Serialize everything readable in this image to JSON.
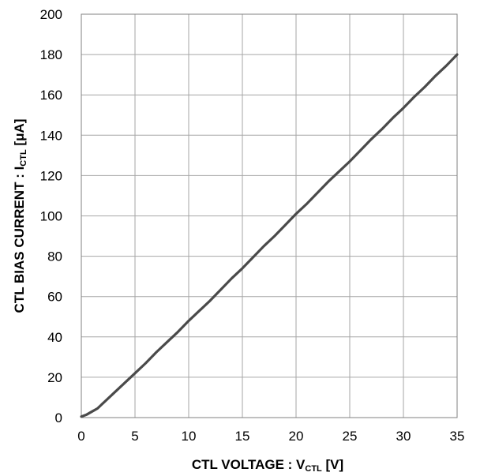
{
  "chart_data": {
    "type": "line",
    "title": "",
    "xlabel": {
      "prefix": "CTL VOLTAGE : V",
      "subscript": "CTL",
      "suffix": " [V]"
    },
    "ylabel": {
      "prefix": "CTL BIAS CURRENT : I",
      "subscript": "CTL",
      "suffix": " [μA]"
    },
    "xlim": [
      0,
      35
    ],
    "ylim": [
      0,
      200
    ],
    "xticks": [
      0,
      5,
      10,
      15,
      20,
      25,
      30,
      35
    ],
    "yticks": [
      0,
      20,
      40,
      60,
      80,
      100,
      120,
      140,
      160,
      180,
      200
    ],
    "xtick_labels": [
      "0",
      "5",
      "10",
      "15",
      "20",
      "25",
      "30",
      "35"
    ],
    "ytick_labels": [
      "0",
      "20",
      "40",
      "60",
      "80",
      "100",
      "120",
      "140",
      "160",
      "180",
      "200"
    ],
    "grid": true,
    "legend": false,
    "colors": {
      "line": "#4a4a4a",
      "grid": "#a6a6a6",
      "frame": "#808080"
    },
    "series": [
      {
        "x": [
          0,
          0.5,
          1,
          1.5,
          2,
          3,
          4,
          5,
          6,
          7,
          8,
          9,
          10,
          11,
          12,
          13,
          14,
          15,
          16,
          17,
          18,
          19,
          20,
          21,
          22,
          23,
          24,
          25,
          26,
          27,
          28,
          29,
          30,
          31,
          32,
          33,
          34,
          35
        ],
        "y": [
          0.5,
          1.5,
          3,
          4.5,
          7,
          12,
          17,
          22,
          27,
          32.5,
          37.5,
          42.5,
          48,
          53,
          58,
          63.5,
          69,
          74,
          79.5,
          85,
          90,
          95.5,
          101,
          106,
          111.5,
          117,
          122,
          127,
          132.5,
          138,
          143,
          148.5,
          153.5,
          159,
          164,
          169.5,
          174.5,
          180
        ]
      }
    ]
  }
}
